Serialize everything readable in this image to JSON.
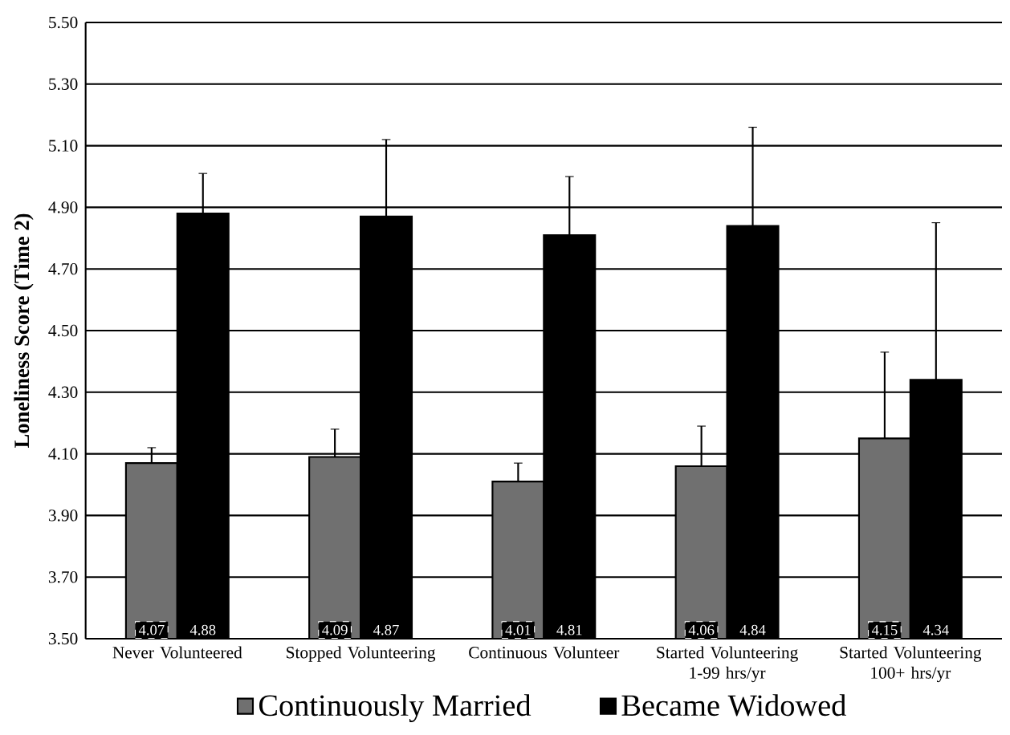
{
  "chart_data": {
    "type": "bar",
    "ylabel": "Loneliness Score (Time 2)",
    "categories": [
      "Never Volunteered",
      "Stopped Volunteering",
      "Continuous Volunteer",
      "Started Volunteering 1-99 hrs/yr",
      "Started Volunteering 100+ hrs/yr"
    ],
    "series": [
      {
        "name": "Continuously Married",
        "color": "#707070",
        "values": [
          4.07,
          4.09,
          4.01,
          4.06,
          4.15
        ],
        "errors": [
          [
            4.07,
            4.12
          ],
          [
            4.09,
            4.18
          ],
          [
            4.01,
            4.07
          ],
          [
            4.06,
            4.19
          ],
          [
            4.15,
            4.43
          ]
        ]
      },
      {
        "name": "Became Widowed",
        "color": "#000000",
        "values": [
          4.88,
          4.87,
          4.81,
          4.84,
          4.34
        ],
        "errors": [
          [
            4.88,
            5.01
          ],
          [
            4.87,
            5.12
          ],
          [
            4.81,
            5.0
          ],
          [
            4.84,
            5.16
          ],
          [
            4.34,
            4.85
          ]
        ]
      }
    ],
    "ylim": [
      3.5,
      5.5
    ],
    "yticks": [
      {
        "value": 3.5,
        "label": "3.50"
      },
      {
        "value": 3.7,
        "label": "3.70"
      },
      {
        "value": 3.9,
        "label": "3.90"
      },
      {
        "value": 4.1,
        "label": "4.10"
      },
      {
        "value": 4.3,
        "label": "4.30"
      },
      {
        "value": 4.5,
        "label": "4.50"
      },
      {
        "value": 4.7,
        "label": "4.70"
      },
      {
        "value": 4.9,
        "label": "4.90"
      },
      {
        "value": 5.1,
        "label": "5.10"
      },
      {
        "value": 5.3,
        "label": "5.30"
      },
      {
        "value": 5.5,
        "label": "5.50"
      }
    ],
    "grid": "y",
    "legend": "bottom",
    "data_labels": true
  }
}
